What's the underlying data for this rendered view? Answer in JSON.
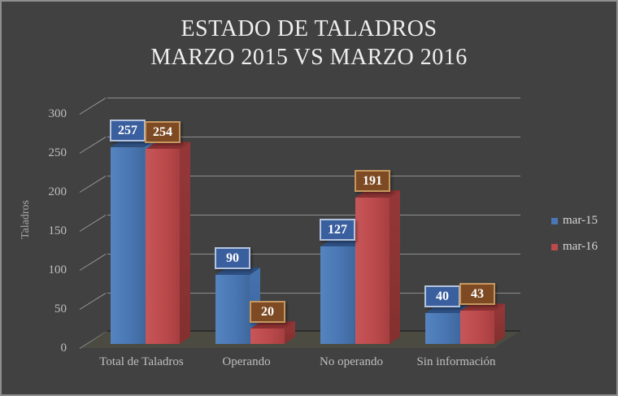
{
  "window": {
    "background": "#414141",
    "border_color": "#8f8f8f"
  },
  "title": {
    "line1": "ESTADO DE TALADROS",
    "line2": "MARZO 2015 VS MARZO 2016"
  },
  "chart_data": {
    "type": "bar",
    "style": "3d-clustered-column",
    "title": "ESTADO DE TALADROS MARZO 2015 VS MARZO 2016",
    "categories": [
      "Total de Taladros",
      "Operando",
      "No operando",
      "Sin información"
    ],
    "series": [
      {
        "name": "mar-15",
        "color": "#4A77B4",
        "label_box_color": "#3A5F9E",
        "values": [
          257,
          90,
          127,
          40
        ]
      },
      {
        "name": "mar-16",
        "color": "#BC4A4C",
        "label_box_color": "#7D4A23",
        "values": [
          254,
          20,
          191,
          43
        ]
      }
    ],
    "xlabel": "",
    "ylabel": "Taladros",
    "ylim": [
      0,
      300
    ],
    "yticks": [
      0,
      50,
      100,
      150,
      200,
      250,
      300
    ],
    "grid": true,
    "data_labels": true,
    "legend_position": "right"
  },
  "legend": {
    "items": [
      {
        "label": "mar-15",
        "color": "#4A77B4"
      },
      {
        "label": "mar-16",
        "color": "#BC4A4C"
      }
    ]
  }
}
